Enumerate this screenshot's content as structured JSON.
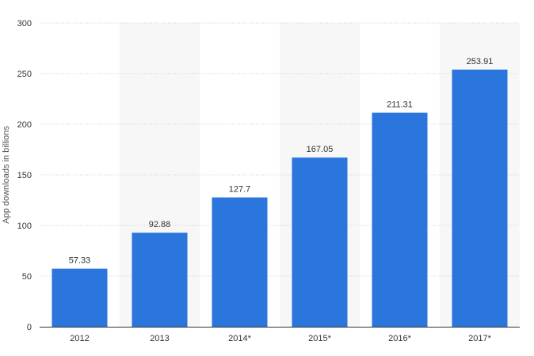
{
  "chart_data": {
    "type": "bar",
    "categories": [
      "2012",
      "2013",
      "2014*",
      "2015*",
      "2016*",
      "2017*"
    ],
    "values": [
      57.33,
      92.88,
      127.7,
      167.05,
      211.31,
      253.91
    ],
    "data_labels": [
      "57.33",
      "92.88",
      "127.7",
      "167.05",
      "211.31",
      "253.91"
    ],
    "title": "",
    "xlabel": "",
    "ylabel": "App downloads in billions",
    "ylim": [
      0,
      300
    ],
    "yticks": [
      0,
      50,
      100,
      150,
      200,
      250,
      300
    ],
    "grid": true,
    "alternating_bands": true,
    "colors": {
      "bar": "#2a76dd",
      "band": "#f7f7f7",
      "grid": "#cccccc",
      "axis": "#333333"
    }
  }
}
